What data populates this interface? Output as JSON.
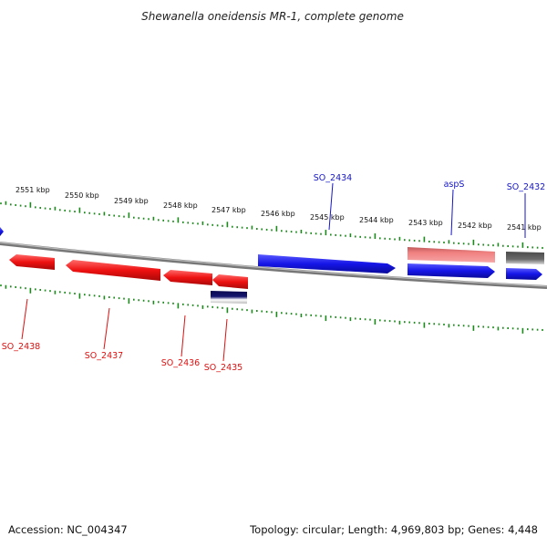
{
  "title": "Shewanella oneidensis MR-1, complete genome",
  "footer": {
    "accession": "Accession: NC_004347",
    "topology": "Topology: circular; Length: 4,969,803 bp; Genes: 4,448"
  },
  "colors": {
    "forward_gene": "#1515e8",
    "reverse_gene": "#ee1111",
    "light_gene": "#f08080",
    "gray_gene": "#6a6a6a",
    "navy_gene": "#151570",
    "backbone": "#888888",
    "ticks": "#1a8a1a",
    "forward_label": "#1515c8",
    "reverse_label": "#dd1111"
  },
  "kbp_labels": [
    "2551 kbp",
    "2550 kbp",
    "2549 kbp",
    "2548 kbp",
    "2547 kbp",
    "2546 kbp",
    "2545 kbp",
    "2544 kbp",
    "2543 kbp",
    "2542 kbp",
    "2541 kbp"
  ],
  "forward_genes": [
    {
      "label": "SO_2434",
      "kind": "forward"
    },
    {
      "label": "aspS",
      "kind": "light"
    },
    {
      "label": "",
      "kind": "forward"
    },
    {
      "label": "SO_2432",
      "kind": "gray"
    },
    {
      "label": "",
      "kind": "forward"
    },
    {
      "label": "",
      "kind": "forward"
    }
  ],
  "reverse_genes": [
    {
      "label": "SO_2438",
      "kind": "reverse"
    },
    {
      "label": "SO_2437",
      "kind": "reverse"
    },
    {
      "label": "SO_2436",
      "kind": "reverse"
    },
    {
      "label": "SO_2435",
      "kind": "reverse"
    },
    {
      "label": "",
      "kind": "navy"
    }
  ]
}
